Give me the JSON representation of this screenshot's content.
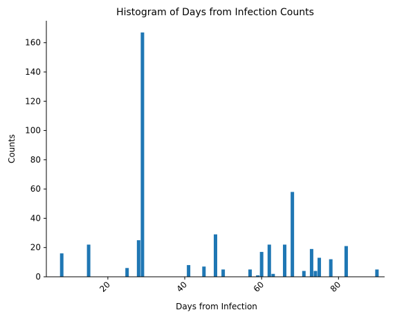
{
  "chart_data": {
    "type": "bar",
    "title": "Histogram of Days from Infection Counts",
    "xlabel": "Days from Infection",
    "ylabel": "Counts",
    "xlim": [
      4,
      92
    ],
    "ylim": [
      0,
      175
    ],
    "xticks": [
      20,
      40,
      60,
      80
    ],
    "yticks": [
      0,
      20,
      40,
      60,
      80,
      100,
      120,
      140,
      160
    ],
    "bar_color": "#1f77b4",
    "grid": false,
    "x": [
      8,
      15,
      25,
      28,
      29,
      41,
      45,
      48,
      50,
      57,
      59,
      60,
      62,
      63,
      66,
      68,
      71,
      73,
      74,
      75,
      78,
      82,
      90
    ],
    "values": [
      16,
      22,
      6,
      25,
      167,
      8,
      7,
      29,
      5,
      5,
      1,
      17,
      22,
      2,
      22,
      58,
      4,
      19,
      4,
      13,
      12,
      21,
      5
    ]
  }
}
